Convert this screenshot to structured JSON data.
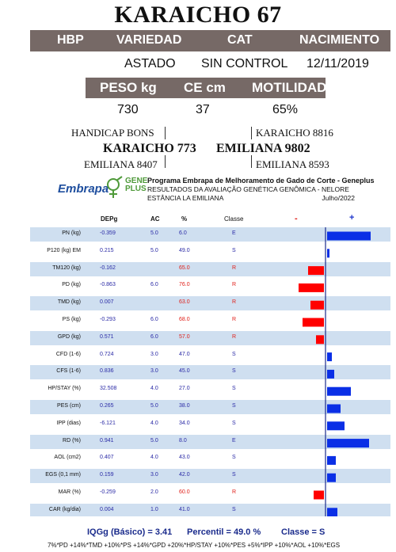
{
  "title": "KARAICHO 67",
  "header": {
    "hbp": "HBP",
    "variedad": "VARIEDAD",
    "cat": "CAT",
    "nacimiento": "NACIMIENTO"
  },
  "header_values": {
    "variedad": "ASTADO",
    "cat": "SIN CONTROL",
    "nacimiento": "12/11/2019"
  },
  "measures": {
    "peso_label": "PESO kg",
    "ce_label": "CE cm",
    "motilidad_label": "MOTILIDAD",
    "peso": "730",
    "ce": "37",
    "motilidad": "65%"
  },
  "pedigree": {
    "sire_sire": "HANDICAP BONS",
    "sire": "KARAICHO 773",
    "sire_dam": "EMILIANA 8407",
    "dam_sire": "KARAICHO 8816",
    "dam": "EMILIANA 9802",
    "dam_dam": "EMILIANA 8593"
  },
  "program": {
    "logo1": "Embrapa",
    "logo2_a": "GENE",
    "logo2_b": "PLUS",
    "line1": "Programa Embrapa de Melhoramento de Gado de Corte - Geneplus",
    "line2": "RESULTADOS DA AVALIAÇÃO GENÉTICA GENÔMICA - NELORE",
    "line3": "ESTÂNCIA LA EMILIANA",
    "date": "Julho/2022"
  },
  "columns": {
    "dep": "DEPg",
    "ac": "AC",
    "pct": "%",
    "cls": "Classe",
    "minus": "-",
    "plus": "+"
  },
  "colors": {
    "positive": "#0a2fe6",
    "negative": "#ff0000",
    "shade": "#cfdff0",
    "header_bar": "#766966"
  },
  "chart_data": {
    "type": "bar",
    "categories": [
      "PN (kg)",
      "P120 (kg) EM",
      "TM120 (kg)",
      "PD (kg)",
      "TMD (kg)",
      "PS (kg)",
      "GPD (kg)",
      "CFD (1-6)",
      "CFS (1-6)",
      "HP/STAY (%)",
      "PES (cm)",
      "IPP (dias)",
      "RD (%)",
      "AOL (cm2)",
      "EGS (0,1 mm)",
      "MAR (%)",
      "CAR (kg/dia)"
    ],
    "deps": [
      "-0.359",
      "0.215",
      "-0.162",
      "-0.863",
      "0.007",
      "-0.293",
      "0.571",
      "0.724",
      "0.836",
      "32.508",
      "0.265",
      "-6.121",
      "0.941",
      "0.407",
      "0.159",
      "-0.259",
      "0.004"
    ],
    "acc": [
      "5.0",
      "5.0",
      "",
      "6.0",
      "",
      "6.0",
      "6.0",
      "3.0",
      "3.0",
      "4.0",
      "5.0",
      "4.0",
      "5.0",
      "4.0",
      "3.0",
      "2.0",
      "1.0"
    ],
    "percentile": [
      "6.0",
      "49.0",
      "65.0",
      "76.0",
      "63.0",
      "68.0",
      "57.0",
      "47.0",
      "45.0",
      "27.0",
      "38.0",
      "34.0",
      "8.0",
      "43.0",
      "42.0",
      "60.0",
      "41.0"
    ],
    "classe": [
      "E",
      "S",
      "R",
      "R",
      "R",
      "R",
      "R",
      "S",
      "S",
      "S",
      "S",
      "S",
      "E",
      "S",
      "S",
      "R",
      "S"
    ],
    "bar_values": [
      55,
      3,
      -20,
      -32,
      -17,
      -27,
      -10,
      6,
      9,
      30,
      17,
      22,
      53,
      11,
      11,
      -13,
      13
    ]
  },
  "summary": {
    "iqg": "IQGg (Básico) = 3.41",
    "percentil": "Percentil = 49.0 %",
    "classe": "Classe = S",
    "formula": "7%*PD +14%*TMD +10%*PS +14%*GPD +20%*HP/STAY +10%*PES +5%*IPP +10%*AOL +10%*EGS"
  }
}
